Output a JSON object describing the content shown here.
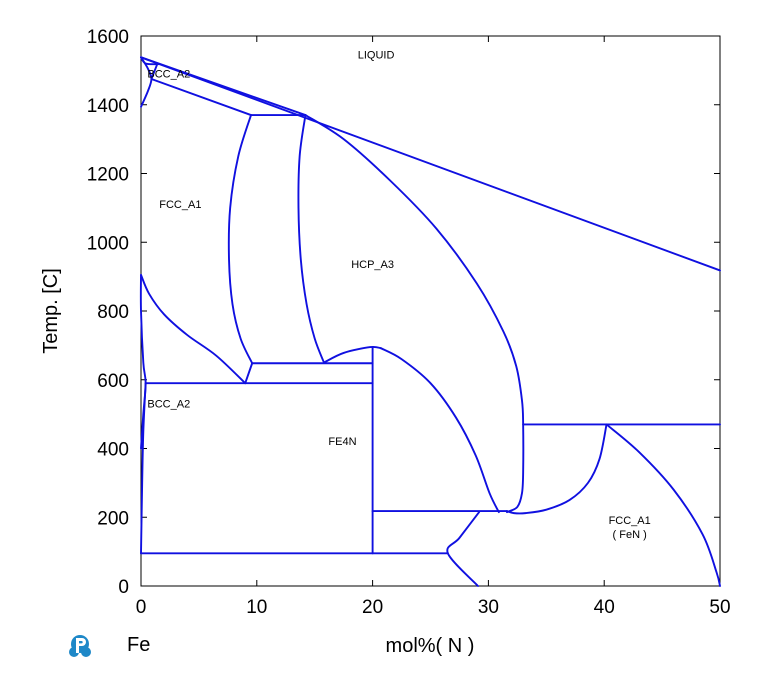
{
  "chart_data": {
    "type": "line",
    "title": "",
    "xlabel": "mol%( N )",
    "ylabel": "Temp.  [C]",
    "xlim": [
      0,
      50
    ],
    "ylim": [
      0,
      1600
    ],
    "x_ticks": [
      0,
      10,
      20,
      30,
      40,
      50
    ],
    "y_ticks": [
      0,
      200,
      400,
      600,
      800,
      1000,
      1200,
      1400,
      1600
    ],
    "x_tick_labels": [
      "0",
      "10",
      "20",
      "30",
      "40",
      "50"
    ],
    "y_tick_labels": [
      "0",
      "200",
      "400",
      "600",
      "800",
      "1000",
      "1200",
      "1400",
      "1600"
    ],
    "grid": false,
    "line_color": "#1010e0",
    "component_label": "Fe",
    "phase_labels": [
      {
        "text": "LIQUID",
        "x": 20.3,
        "y": 1535
      },
      {
        "text": "BCC_A2",
        "x": 2.4,
        "y": 1480
      },
      {
        "text": "FCC_A1",
        "x": 3.4,
        "y": 1100
      },
      {
        "text": "HCP_A3",
        "x": 20.0,
        "y": 925
      },
      {
        "text": "BCC_A2",
        "x": 2.4,
        "y": 520
      },
      {
        "text": "FE4N",
        "x": 17.4,
        "y": 410
      },
      {
        "text": "FCC_A1",
        "x": 42.2,
        "y": 180
      },
      {
        "text": "( FeN )",
        "x": 42.2,
        "y": 140
      }
    ],
    "series": [
      {
        "points": [
          [
            0,
            1538
          ],
          [
            50,
            918
          ]
        ]
      },
      {
        "points": [
          [
            0,
            1538
          ],
          [
            14.2,
            1370
          ]
        ]
      },
      {
        "points": [
          [
            0,
            1538
          ],
          [
            0.4,
            1520
          ],
          [
            1.5,
            1518
          ]
        ]
      },
      {
        "points": [
          [
            0,
            1538
          ],
          [
            0.6,
            1505
          ],
          [
            0.9,
            1475
          ],
          [
            0.6,
            1440
          ],
          [
            0,
            1394
          ]
        ]
      },
      {
        "points": [
          [
            0.9,
            1475
          ],
          [
            1.4,
            1518
          ]
        ]
      },
      {
        "points": [
          [
            0.9,
            1475
          ],
          [
            9.5,
            1370
          ]
        ]
      },
      {
        "points": [
          [
            9.5,
            1370
          ],
          [
            14.2,
            1370
          ]
        ]
      },
      {
        "points": [
          [
            9.5,
            1370
          ],
          [
            8.4,
            1250
          ],
          [
            7.7,
            1100
          ],
          [
            7.6,
            950
          ],
          [
            7.9,
            820
          ],
          [
            8.6,
            720
          ],
          [
            9.6,
            648
          ]
        ]
      },
      {
        "points": [
          [
            14.2,
            1370
          ],
          [
            13.7,
            1250
          ],
          [
            13.6,
            1100
          ],
          [
            13.8,
            950
          ],
          [
            14.3,
            820
          ],
          [
            15.0,
            720
          ],
          [
            15.8,
            650
          ]
        ]
      },
      {
        "points": [
          [
            14.2,
            1370
          ],
          [
            17.5,
            1300
          ],
          [
            21.5,
            1180
          ],
          [
            25.5,
            1040
          ],
          [
            29.0,
            880
          ],
          [
            31.3,
            740
          ],
          [
            32.4,
            640
          ],
          [
            32.9,
            540
          ],
          [
            33.0,
            470
          ],
          [
            33.0,
            330
          ],
          [
            32.9,
            270
          ],
          [
            32.5,
            230
          ],
          [
            31.6,
            215
          ]
        ]
      },
      {
        "points": [
          [
            0,
            905
          ],
          [
            0.7,
            850
          ],
          [
            2.0,
            790
          ],
          [
            4.0,
            730
          ],
          [
            6.5,
            670
          ],
          [
            9.0,
            590
          ]
        ]
      },
      {
        "points": [
          [
            9.0,
            590
          ],
          [
            9.6,
            648
          ]
        ]
      },
      {
        "points": [
          [
            9.6,
            648
          ],
          [
            20.0,
            648
          ]
        ]
      },
      {
        "points": [
          [
            15.8,
            650
          ],
          [
            17.5,
            678
          ],
          [
            19.8,
            695
          ],
          [
            20.7,
            692
          ]
        ]
      },
      {
        "points": [
          [
            20.0,
            695
          ],
          [
            20.0,
            95
          ]
        ]
      },
      {
        "points": [
          [
            0.4,
            590
          ],
          [
            20.0,
            590
          ]
        ]
      },
      {
        "points": [
          [
            0,
            400
          ],
          [
            0.2,
            500
          ],
          [
            0.4,
            590
          ],
          [
            0.2,
            650
          ],
          [
            0,
            800
          ],
          [
            0,
            905
          ]
        ]
      },
      {
        "points": [
          [
            0.4,
            590
          ],
          [
            0.2,
            450
          ],
          [
            0.1,
            300
          ],
          [
            0,
            95
          ]
        ]
      },
      {
        "points": [
          [
            0,
            95
          ],
          [
            26.5,
            95
          ]
        ]
      },
      {
        "points": [
          [
            20.7,
            692
          ],
          [
            22.5,
            660
          ],
          [
            25.0,
            590
          ],
          [
            27.2,
            490
          ],
          [
            28.9,
            380
          ],
          [
            30.1,
            270
          ],
          [
            30.9,
            215
          ]
        ]
      },
      {
        "points": [
          [
            20.0,
            218
          ],
          [
            31.6,
            218
          ]
        ]
      },
      {
        "points": [
          [
            31.6,
            218
          ],
          [
            32.2,
            212
          ],
          [
            33.2,
            212
          ],
          [
            35.0,
            222
          ],
          [
            37.0,
            250
          ],
          [
            38.6,
            300
          ],
          [
            39.6,
            370
          ],
          [
            40.2,
            470
          ]
        ]
      },
      {
        "points": [
          [
            33.0,
            470
          ],
          [
            50,
            470
          ]
        ]
      },
      {
        "points": [
          [
            40.2,
            470
          ],
          [
            43.0,
            390
          ],
          [
            46.0,
            280
          ],
          [
            48.5,
            150
          ],
          [
            49.7,
            40
          ],
          [
            50,
            0
          ]
        ]
      },
      {
        "points": [
          [
            29.2,
            215
          ],
          [
            27.5,
            140
          ],
          [
            26.5,
            95
          ],
          [
            29.1,
            0
          ]
        ]
      }
    ]
  }
}
